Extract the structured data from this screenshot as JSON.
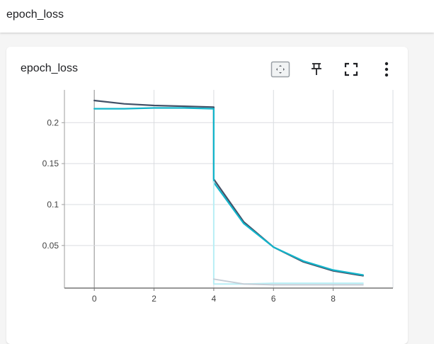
{
  "header": {
    "title": "epoch_loss"
  },
  "card": {
    "title": "epoch_loss",
    "toolbar": {
      "icons": [
        "fit-domain-icon",
        "pin-icon",
        "fullscreen-icon",
        "more-vert-icon"
      ]
    }
  },
  "colors": {
    "grid": "#dadce0",
    "axis": "#9e9e9e",
    "series_dark": "#425066",
    "series_teal": "#12b5cb",
    "series_light": "#b8eef5",
    "series_gray": "#c5cdd6"
  },
  "chart_data": {
    "type": "line",
    "xlabel": "",
    "ylabel": "",
    "xlim": [
      -1,
      10
    ],
    "ylim": [
      -0.002,
      0.24
    ],
    "x_ticks": [
      "0",
      "2",
      "4",
      "6",
      "8"
    ],
    "y_ticks": [
      "0.05",
      "0.1",
      "0.15",
      "0.2"
    ],
    "grid": true,
    "series": [
      {
        "color": "#425066",
        "x": [
          0,
          1,
          2,
          3,
          4,
          4,
          5,
          6,
          7,
          8,
          9
        ],
        "y": [
          0.227,
          0.223,
          0.221,
          0.22,
          0.219,
          0.131,
          0.079,
          0.048,
          0.03,
          0.019,
          0.013
        ]
      },
      {
        "color": "#12b5cb",
        "x": [
          0,
          1,
          2,
          3,
          4,
          4,
          5,
          6,
          7,
          8,
          9
        ],
        "y": [
          0.217,
          0.217,
          0.218,
          0.218,
          0.217,
          0.127,
          0.077,
          0.048,
          0.031,
          0.02,
          0.014
        ]
      },
      {
        "color": "#b8eef5",
        "x": [
          4,
          4,
          5,
          6,
          7,
          8,
          9
        ],
        "y": [
          0.128,
          0.003,
          0.003,
          0.004,
          0.004,
          0.004,
          0.004
        ]
      },
      {
        "color": "#c5cdd6",
        "x": [
          4,
          5,
          6,
          7,
          8,
          9
        ],
        "y": [
          0.009,
          0.003,
          0.002,
          0.002,
          0.002,
          0.002
        ]
      }
    ]
  }
}
